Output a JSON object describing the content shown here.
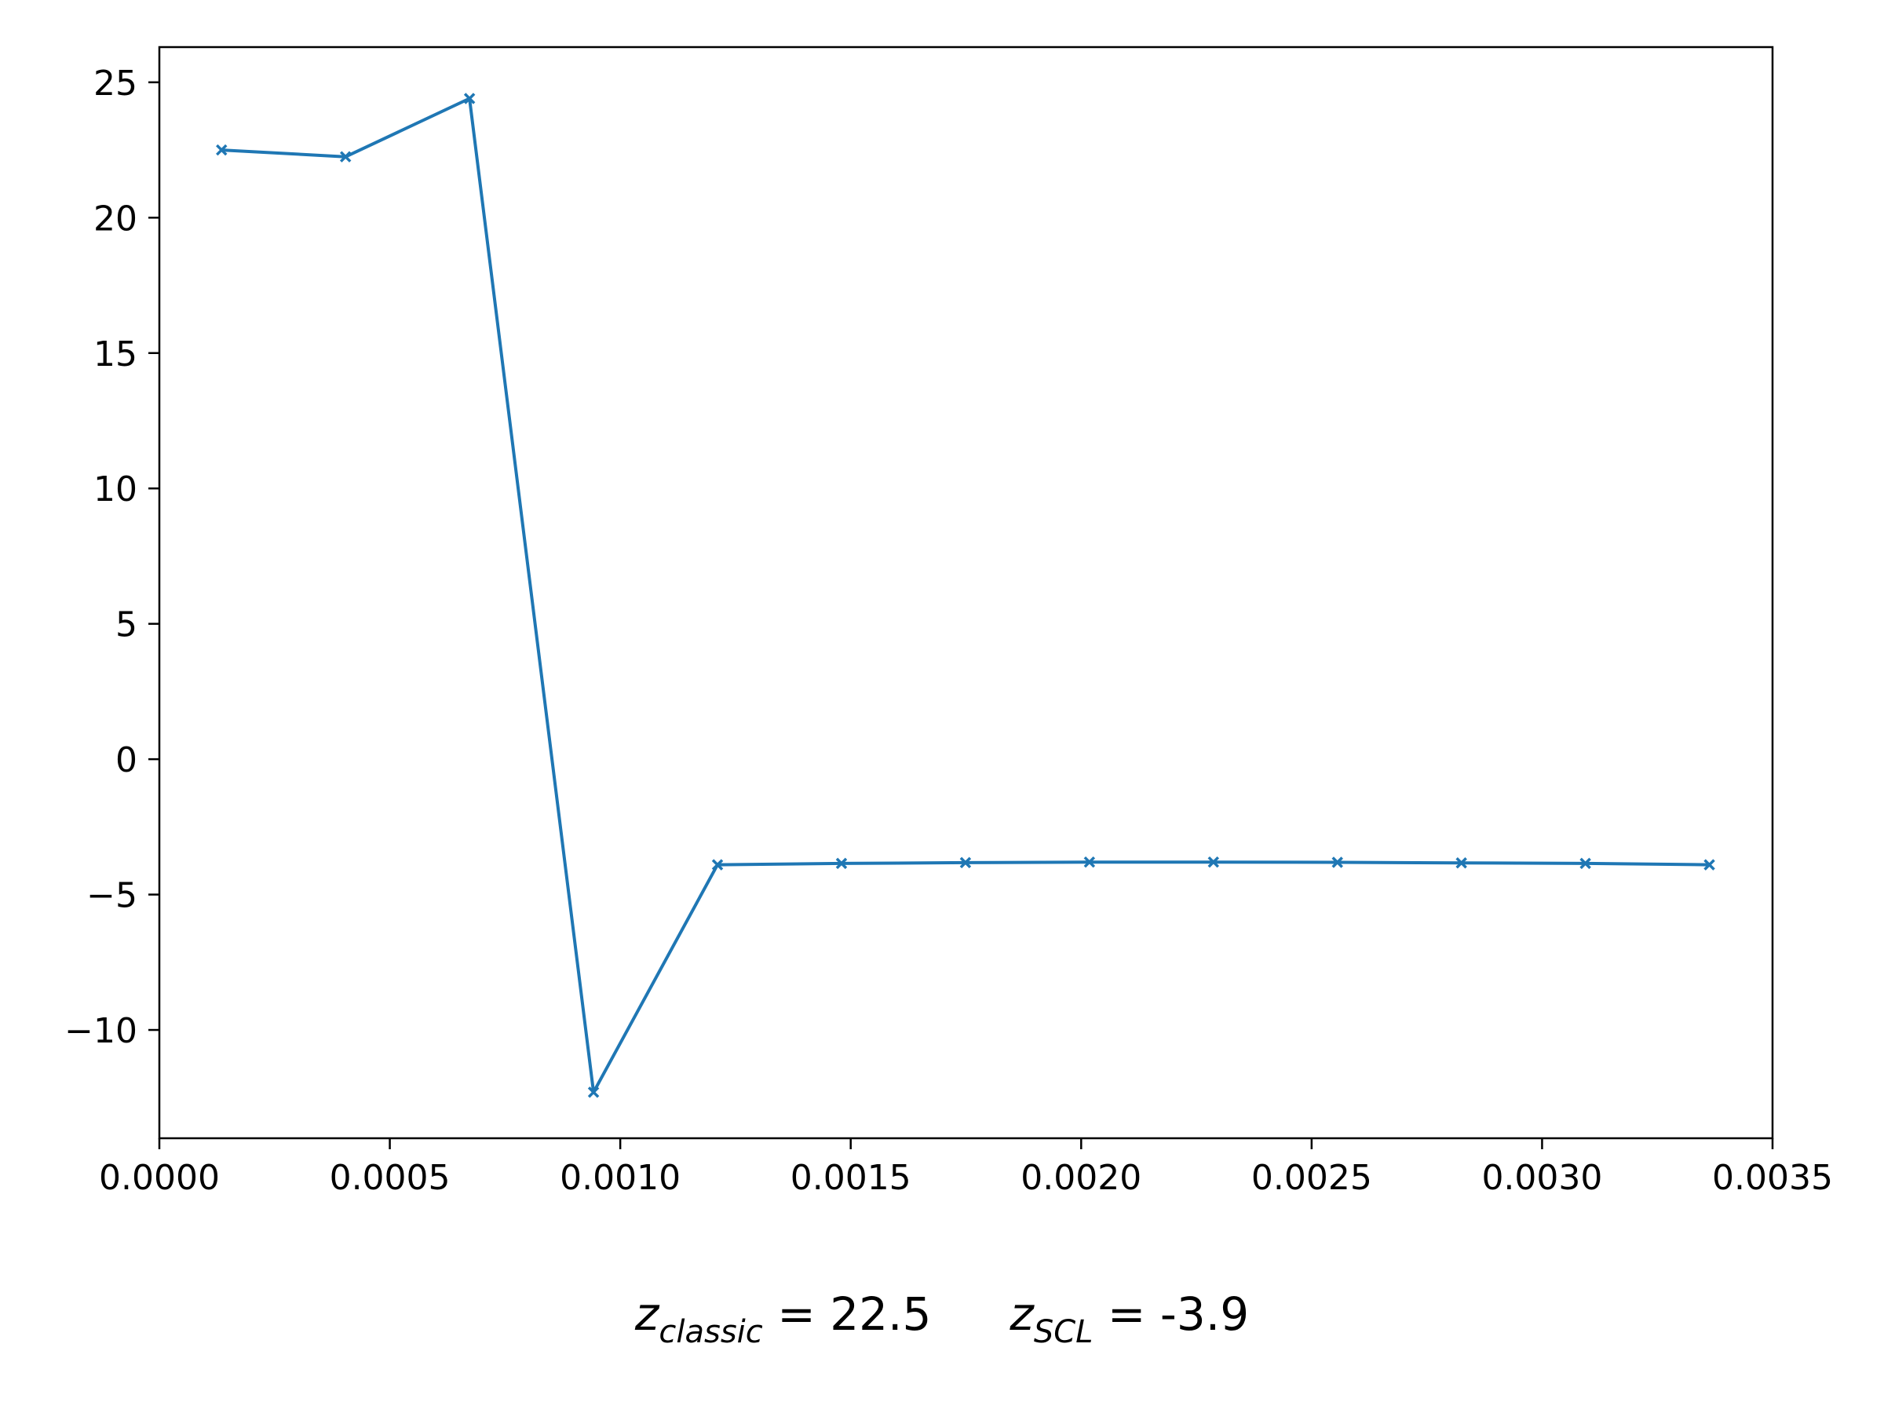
{
  "chart_data": {
    "type": "line",
    "title": "",
    "xlabel": "",
    "ylabel": "",
    "xlim": [
      0.0,
      0.0035
    ],
    "ylim": [
      -14,
      26.3
    ],
    "x_ticks": [
      0.0,
      0.0005,
      0.001,
      0.0015,
      0.002,
      0.0025,
      0.003,
      0.0035
    ],
    "x_tick_labels": [
      "0.0000",
      "0.0005",
      "0.0010",
      "0.0015",
      "0.0020",
      "0.0025",
      "0.0030",
      "0.0035"
    ],
    "y_ticks": [
      25,
      20,
      15,
      10,
      5,
      0,
      -5,
      -10
    ],
    "y_tick_labels": [
      "25",
      "20",
      "15",
      "10",
      "5",
      "0",
      "−5",
      "−10"
    ],
    "grid": false,
    "marker": "x",
    "color": "#1f77b4",
    "series": [
      {
        "x": [
          0.000135,
          0.000404,
          0.000673,
          0.000942,
          0.001211,
          0.00148,
          0.001749,
          0.002018,
          0.002287,
          0.002556,
          0.002825,
          0.003094,
          0.003363
        ],
        "values": [
          22.5,
          22.25,
          24.4,
          -12.3,
          -3.9,
          -3.85,
          -3.82,
          -3.8,
          -3.8,
          -3.81,
          -3.83,
          -3.85,
          -3.9
        ]
      }
    ]
  },
  "caption": {
    "z_classic": {
      "var": "z",
      "sub": "classic",
      "text": " = 22.5"
    },
    "z_scl": {
      "var": "z",
      "sub": "SCL",
      "text": " = -3.9"
    }
  }
}
